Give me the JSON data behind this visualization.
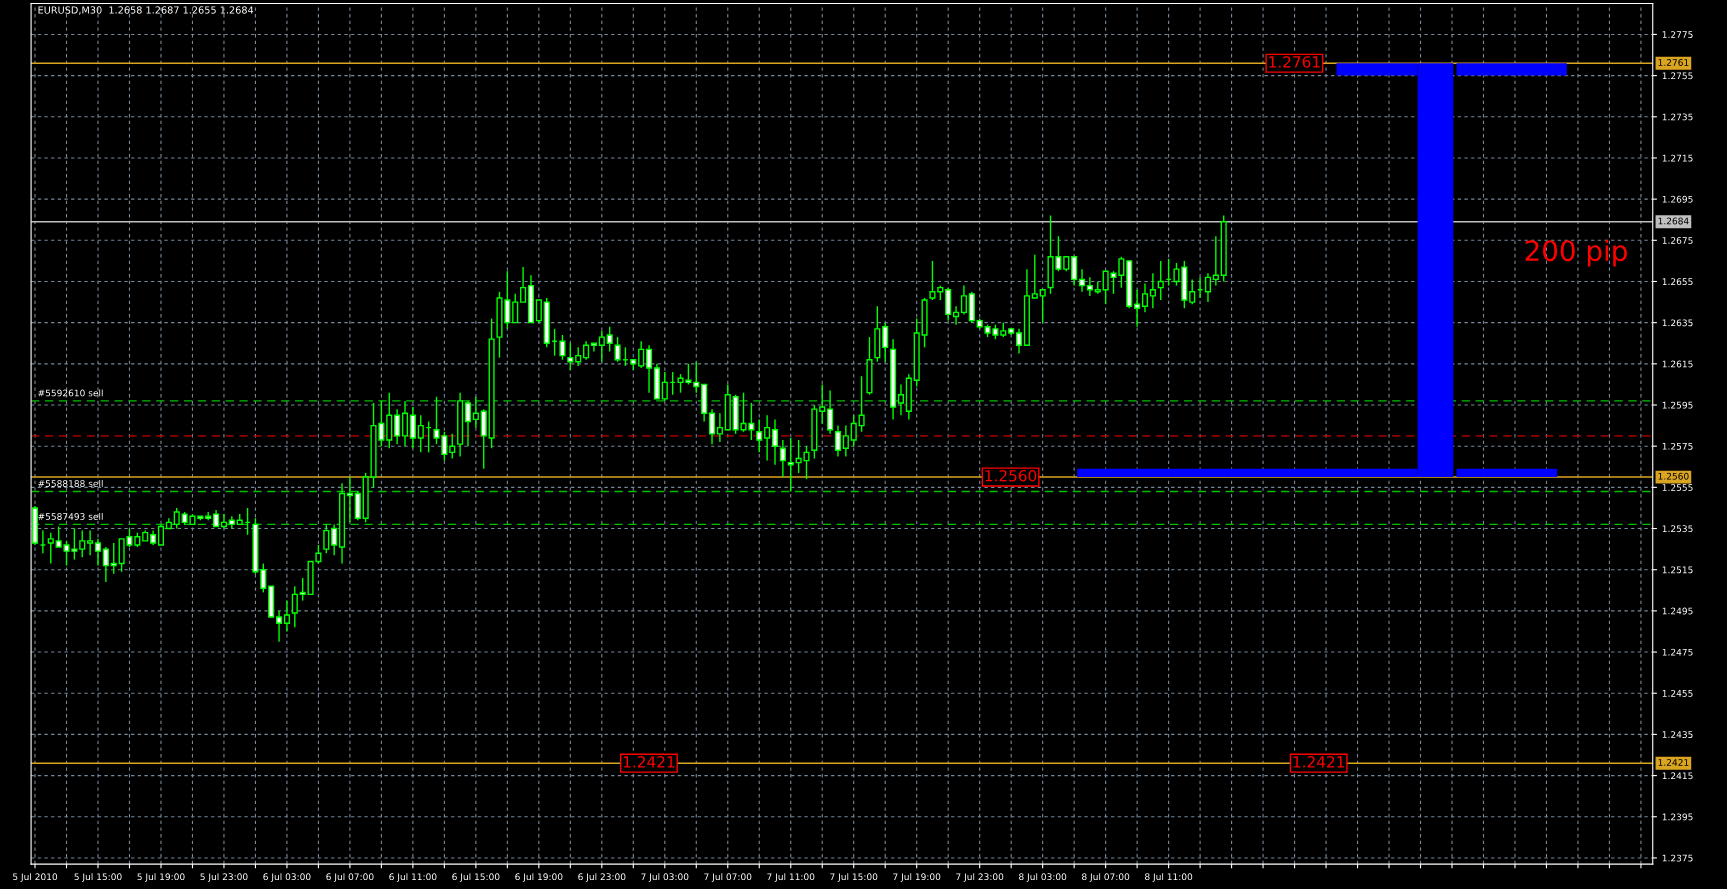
{
  "chart_data": {
    "type": "candlestick",
    "title": "EURUSD,M30  1.2658 1.2687 1.2655 1.2684",
    "color": "#00ff00",
    "categories": [
      "5 Jul 2010",
      null,
      null,
      null,
      null,
      null,
      null,
      null,
      "5 Jul 15:00",
      null,
      null,
      null,
      null,
      null,
      null,
      null,
      "5 Jul 19:00",
      null,
      null,
      null,
      null,
      null,
      null,
      null,
      "5 Jul 23:00",
      null,
      null,
      null,
      null,
      null,
      null,
      null,
      "6 Jul 03:00",
      null,
      null,
      null,
      null,
      null,
      null,
      null,
      "6 Jul 07:00",
      null,
      null,
      null,
      null,
      null,
      null,
      null,
      "6 Jul 11:00",
      null,
      null,
      null,
      null,
      null,
      null,
      null,
      "6 Jul 15:00",
      null,
      null,
      null,
      null,
      null,
      null,
      null,
      "6 Jul 19:00",
      null,
      null,
      null,
      null,
      null,
      null,
      null,
      "6 Jul 23:00",
      null,
      null,
      null,
      null,
      null,
      null,
      null,
      "7 Jul 03:00",
      null,
      null,
      null,
      null,
      null,
      null,
      null,
      "7 Jul 07:00",
      null,
      null,
      null,
      null,
      null,
      null,
      null,
      "7 Jul 11:00",
      null,
      null,
      null,
      null,
      null,
      null,
      null,
      "7 Jul 15:00",
      null,
      null,
      null,
      null,
      null,
      null,
      null,
      "7 Jul 19:00",
      null,
      null,
      null,
      null,
      null,
      null,
      null,
      "7 Jul 23:00",
      null,
      null,
      null,
      null,
      null,
      null,
      null,
      "8 Jul 03:00",
      null,
      null,
      null,
      null,
      null,
      null,
      null,
      "8 Jul 07:00",
      null,
      null,
      null,
      null,
      null,
      null,
      null,
      "8 Jul 11:00",
      null,
      null,
      null,
      null,
      null,
      null,
      null,
      null,
      null,
      null,
      null,
      null,
      null,
      null,
      null,
      null,
      null,
      null,
      null,
      null,
      null,
      null,
      null,
      null,
      null,
      null,
      null,
      null,
      null,
      null,
      null,
      null,
      null,
      null,
      null,
      null,
      null,
      null,
      null,
      null,
      null,
      null,
      null,
      null,
      null,
      null,
      null,
      null,
      null,
      null,
      null,
      null,
      null,
      null,
      null,
      null,
      null,
      null,
      null,
      null,
      null
    ],
    "ohlc": [
      [
        1.2545,
        1.2546,
        1.2527,
        1.2528
      ],
      [
        1.2527,
        1.2534,
        1.2523,
        1.2527
      ],
      [
        1.2528,
        1.2533,
        1.2518,
        1.253
      ],
      [
        1.2529,
        1.2536,
        1.2526,
        1.2526
      ],
      [
        1.2527,
        1.2529,
        1.2517,
        1.2524
      ],
      [
        1.2525,
        1.2535,
        1.252,
        1.2524
      ],
      [
        1.2525,
        1.2534,
        1.2521,
        1.2529
      ],
      [
        1.2528,
        1.2534,
        1.2522,
        1.2529
      ],
      [
        1.2528,
        1.253,
        1.2517,
        1.2524
      ],
      [
        1.2525,
        1.2526,
        1.2509,
        1.2517
      ],
      [
        1.2518,
        1.2528,
        1.2513,
        1.2517
      ],
      [
        1.2518,
        1.253,
        1.2514,
        1.253
      ],
      [
        1.2531,
        1.2535,
        1.2526,
        1.2527
      ],
      [
        1.2527,
        1.2533,
        1.2526,
        1.2531
      ],
      [
        1.2529,
        1.2534,
        1.2529,
        1.2533
      ],
      [
        1.2532,
        1.2534,
        1.2527,
        1.2528
      ],
      [
        1.2527,
        1.2537,
        1.2527,
        1.2536
      ],
      [
        1.2535,
        1.254,
        1.2535,
        1.2538
      ],
      [
        1.2537,
        1.2545,
        1.2535,
        1.2543
      ],
      [
        1.2542,
        1.2543,
        1.2537,
        1.2538
      ],
      [
        1.2537,
        1.2542,
        1.2537,
        1.2541
      ],
      [
        1.2541,
        1.2541,
        1.2539,
        1.254
      ],
      [
        1.2541,
        1.2543,
        1.2539,
        1.254
      ],
      [
        1.2542,
        1.2544,
        1.2536,
        1.2536
      ],
      [
        1.2536,
        1.2542,
        1.2535,
        1.2538
      ],
      [
        1.2539,
        1.2541,
        1.2535,
        1.2537
      ],
      [
        1.2537,
        1.2542,
        1.2537,
        1.2539
      ],
      [
        1.2538,
        1.2545,
        1.2532,
        1.2538
      ],
      [
        1.2537,
        1.254,
        1.2513,
        1.2514
      ],
      [
        1.2515,
        1.2518,
        1.2504,
        1.2506
      ],
      [
        1.2507,
        1.2507,
        1.2492,
        1.2492
      ],
      [
        1.2492,
        1.2495,
        1.248,
        1.2489
      ],
      [
        1.2489,
        1.25,
        1.2485,
        1.2493
      ],
      [
        1.2494,
        1.2507,
        1.2487,
        1.2503
      ],
      [
        1.2504,
        1.2511,
        1.25,
        1.2503
      ],
      [
        1.2503,
        1.2519,
        1.2503,
        1.2519
      ],
      [
        1.2519,
        1.2527,
        1.2518,
        1.2523
      ],
      [
        1.2525,
        1.2537,
        1.2523,
        1.2534
      ],
      [
        1.2535,
        1.2537,
        1.2522,
        1.2527
      ],
      [
        1.2526,
        1.2557,
        1.2518,
        1.2552
      ],
      [
        1.2552,
        1.256,
        1.2538,
        1.2551
      ],
      [
        1.2552,
        1.2553,
        1.2539,
        1.254
      ],
      [
        1.254,
        1.2562,
        1.2538,
        1.256
      ],
      [
        1.256,
        1.2596,
        1.2555,
        1.2585
      ],
      [
        1.2586,
        1.2597,
        1.2575,
        1.2578
      ],
      [
        1.2578,
        1.2601,
        1.2574,
        1.259
      ],
      [
        1.259,
        1.2593,
        1.2576,
        1.258
      ],
      [
        1.258,
        1.2597,
        1.2575,
        1.2591
      ],
      [
        1.259,
        1.2594,
        1.2574,
        1.2579
      ],
      [
        1.2579,
        1.259,
        1.2572,
        1.2585
      ],
      [
        1.2584,
        1.2587,
        1.2572,
        1.2584
      ],
      [
        1.2583,
        1.2599,
        1.2576,
        1.2579
      ],
      [
        1.258,
        1.2582,
        1.2568,
        1.2571
      ],
      [
        1.2572,
        1.2581,
        1.2569,
        1.2575
      ],
      [
        1.2576,
        1.2601,
        1.257,
        1.2597
      ],
      [
        1.2596,
        1.2597,
        1.2575,
        1.2587
      ],
      [
        1.2588,
        1.2599,
        1.2584,
        1.2591
      ],
      [
        1.2592,
        1.2593,
        1.2564,
        1.258
      ],
      [
        1.2579,
        1.2637,
        1.2574,
        1.2627
      ],
      [
        1.2628,
        1.265,
        1.2618,
        1.2647
      ],
      [
        1.2646,
        1.266,
        1.2632,
        1.2635
      ],
      [
        1.2635,
        1.2649,
        1.2635,
        1.2645
      ],
      [
        1.2645,
        1.2662,
        1.2645,
        1.2652
      ],
      [
        1.2653,
        1.2658,
        1.2635,
        1.2635
      ],
      [
        1.2636,
        1.2646,
        1.2635,
        1.2646
      ],
      [
        1.2645,
        1.2647,
        1.2623,
        1.2625
      ],
      [
        1.2626,
        1.2632,
        1.2619,
        1.2626
      ],
      [
        1.2626,
        1.2629,
        1.2617,
        1.2619
      ],
      [
        1.2618,
        1.2625,
        1.2612,
        1.2616
      ],
      [
        1.2616,
        1.2623,
        1.2614,
        1.2619
      ],
      [
        1.2618,
        1.2626,
        1.2617,
        1.2624
      ],
      [
        1.2625,
        1.2625,
        1.2621,
        1.2624
      ],
      [
        1.2624,
        1.2631,
        1.2616,
        1.2628
      ],
      [
        1.2629,
        1.2633,
        1.2621,
        1.2625
      ],
      [
        1.2624,
        1.2628,
        1.2616,
        1.2617
      ],
      [
        1.2617,
        1.2623,
        1.2614,
        1.2617
      ],
      [
        1.2617,
        1.2617,
        1.2612,
        1.2615
      ],
      [
        1.2614,
        1.2626,
        1.2613,
        1.2622
      ],
      [
        1.2622,
        1.2624,
        1.2601,
        1.2613
      ],
      [
        1.2613,
        1.2615,
        1.2598,
        1.2598
      ],
      [
        1.2598,
        1.2611,
        1.2597,
        1.2606
      ],
      [
        1.2606,
        1.2611,
        1.26,
        1.2606
      ],
      [
        1.2606,
        1.261,
        1.2601,
        1.2608
      ],
      [
        1.2607,
        1.2615,
        1.2605,
        1.2606
      ],
      [
        1.2606,
        1.2616,
        1.2601,
        1.2604
      ],
      [
        1.2605,
        1.2605,
        1.2587,
        1.2591
      ],
      [
        1.2591,
        1.2593,
        1.2576,
        1.2581
      ],
      [
        1.2581,
        1.2591,
        1.2577,
        1.2584
      ],
      [
        1.2583,
        1.2605,
        1.2583,
        1.26
      ],
      [
        1.2599,
        1.26,
        1.2581,
        1.2583
      ],
      [
        1.2583,
        1.2601,
        1.2582,
        1.2586
      ],
      [
        1.2586,
        1.2596,
        1.2578,
        1.2583
      ],
      [
        1.2582,
        1.2588,
        1.2572,
        1.2578
      ],
      [
        1.2579,
        1.259,
        1.2568,
        1.2584
      ],
      [
        1.2583,
        1.2588,
        1.2566,
        1.2575
      ],
      [
        1.2574,
        1.2578,
        1.256,
        1.2568
      ],
      [
        1.2567,
        1.2579,
        1.2553,
        1.2566
      ],
      [
        1.2567,
        1.2578,
        1.2562,
        1.2569
      ],
      [
        1.2568,
        1.2575,
        1.2559,
        1.2572
      ],
      [
        1.2573,
        1.2595,
        1.2569,
        1.2593
      ],
      [
        1.2592,
        1.2605,
        1.2586,
        1.2594
      ],
      [
        1.2593,
        1.2602,
        1.2581,
        1.2583
      ],
      [
        1.2582,
        1.2585,
        1.257,
        1.2573
      ],
      [
        1.2574,
        1.2585,
        1.257,
        1.258
      ],
      [
        1.2578,
        1.259,
        1.2575,
        1.2586
      ],
      [
        1.2585,
        1.2609,
        1.2582,
        1.259
      ],
      [
        1.2601,
        1.2628,
        1.26,
        1.2617
      ],
      [
        1.2618,
        1.2643,
        1.2616,
        1.2632
      ],
      [
        1.2633,
        1.2635,
        1.2616,
        1.2623
      ],
      [
        1.2622,
        1.2627,
        1.2588,
        1.2594
      ],
      [
        1.2596,
        1.2605,
        1.259,
        1.26
      ],
      [
        1.2592,
        1.261,
        1.2588,
        1.2608
      ],
      [
        1.2607,
        1.2637,
        1.2604,
        1.263
      ],
      [
        1.2629,
        1.2647,
        1.2623,
        1.2646
      ],
      [
        1.2647,
        1.2665,
        1.2646,
        1.265
      ],
      [
        1.265,
        1.2653,
        1.2646,
        1.2652
      ],
      [
        1.2651,
        1.2652,
        1.2636,
        1.2639
      ],
      [
        1.2638,
        1.2643,
        1.2634,
        1.264
      ],
      [
        1.264,
        1.2653,
        1.2639,
        1.2648
      ],
      [
        1.2649,
        1.265,
        1.2635,
        1.2636
      ],
      [
        1.2636,
        1.2637,
        1.2632,
        1.2633
      ],
      [
        1.2633,
        1.2634,
        1.2628,
        1.263
      ],
      [
        1.2632,
        1.2634,
        1.2627,
        1.2629
      ],
      [
        1.2629,
        1.2635,
        1.2628,
        1.2631
      ],
      [
        1.2632,
        1.2632,
        1.2629,
        1.263
      ],
      [
        1.263,
        1.2632,
        1.262,
        1.2624
      ],
      [
        1.2624,
        1.2661,
        1.2624,
        1.2648
      ],
      [
        1.2647,
        1.2668,
        1.2647,
        1.2649
      ],
      [
        1.2648,
        1.2651,
        1.2635,
        1.2651
      ],
      [
        1.2652,
        1.2687,
        1.2649,
        1.2667
      ],
      [
        1.2667,
        1.2677,
        1.266,
        1.2661
      ],
      [
        1.2661,
        1.2667,
        1.266,
        1.2667
      ],
      [
        1.2667,
        1.2667,
        1.2653,
        1.2656
      ],
      [
        1.2656,
        1.2661,
        1.265,
        1.2653
      ],
      [
        1.2653,
        1.2657,
        1.2648,
        1.2651
      ],
      [
        1.265,
        1.2655,
        1.2649,
        1.2651
      ],
      [
        1.2651,
        1.266,
        1.2644,
        1.266
      ],
      [
        1.2659,
        1.266,
        1.2649,
        1.2657
      ],
      [
        1.2658,
        1.2667,
        1.2652,
        1.2666
      ],
      [
        1.2665,
        1.2665,
        1.2642,
        1.2643
      ],
      [
        1.2644,
        1.2651,
        1.2633,
        1.2642
      ],
      [
        1.2643,
        1.2654,
        1.264,
        1.2649
      ],
      [
        1.2648,
        1.2659,
        1.2642,
        1.2651
      ],
      [
        1.2652,
        1.2665,
        1.2646,
        1.2655
      ],
      [
        1.2656,
        1.2666,
        1.2653,
        1.2656
      ],
      [
        1.2655,
        1.2664,
        1.2653,
        1.2661
      ],
      [
        1.2662,
        1.2665,
        1.2642,
        1.2646
      ],
      [
        1.2645,
        1.2656,
        1.2644,
        1.265
      ],
      [
        1.2651,
        1.2657,
        1.2647,
        1.2651
      ],
      [
        1.265,
        1.2659,
        1.2645,
        1.2657
      ],
      [
        1.2656,
        1.2677,
        1.2653,
        1.2658
      ],
      [
        1.2658,
        1.2687,
        1.2655,
        1.2684
      ],
      null,
      null,
      null,
      null,
      null,
      null,
      null,
      null,
      null,
      null,
      null,
      null,
      null,
      null,
      null,
      null,
      null,
      null,
      null,
      null,
      null,
      null,
      null,
      null,
      null,
      null,
      null,
      null,
      null,
      null,
      null,
      null,
      null,
      null,
      null,
      null,
      null,
      null,
      null,
      null,
      null,
      null,
      null,
      null,
      null,
      null,
      null,
      null,
      null,
      null,
      null,
      null,
      null,
      null
    ],
    "ylim": [
      1.2372,
      1.279
    ],
    "yticks": [
      1.2375,
      1.2395,
      1.2415,
      1.2435,
      1.2455,
      1.2475,
      1.2495,
      1.2515,
      1.2535,
      1.2555,
      1.2575,
      1.2595,
      1.2615,
      1.2635,
      1.2655,
      1.2675,
      1.2695,
      1.2715,
      1.2735,
      1.2755,
      1.2775
    ],
    "grid": true,
    "ref_lines": [
      {
        "axis": "y",
        "value": 1.2761,
        "label": "1.2761",
        "color": "#daa520",
        "line_style": "solid"
      },
      {
        "axis": "y",
        "value": 1.256,
        "label": "1.2560",
        "color": "#daa520",
        "line_style": "solid"
      },
      {
        "axis": "y",
        "value": 1.2421,
        "label": "1.2421",
        "color": "#daa520",
        "line_style": "solid"
      },
      {
        "axis": "y",
        "value": 1.2684,
        "label": "1.2684",
        "color": "#c0c0c0",
        "line_style": "solid"
      },
      {
        "axis": "y",
        "value": 1.2597,
        "label": "#5592610 sell",
        "color": "#00c000",
        "line_style": "dashed"
      },
      {
        "axis": "y",
        "value": 1.2553,
        "label": "#5588188 sell",
        "color": "#00c000",
        "line_style": "dashed"
      },
      {
        "axis": "y",
        "value": 1.2537,
        "label": "#5587493 sell",
        "color": "#00c000",
        "line_style": "dashed"
      },
      {
        "axis": "y",
        "value": 1.258,
        "color": "#c00000",
        "line_style": "dashed"
      }
    ],
    "annotations": [
      {
        "text": "1.2761",
        "y": 1.2761
      },
      {
        "text": "1.2560",
        "y": 1.256
      },
      {
        "text": "1.2421",
        "y": 1.2421
      },
      {
        "text": "1.2421",
        "y": 1.2421
      },
      "200 pip"
    ]
  }
}
